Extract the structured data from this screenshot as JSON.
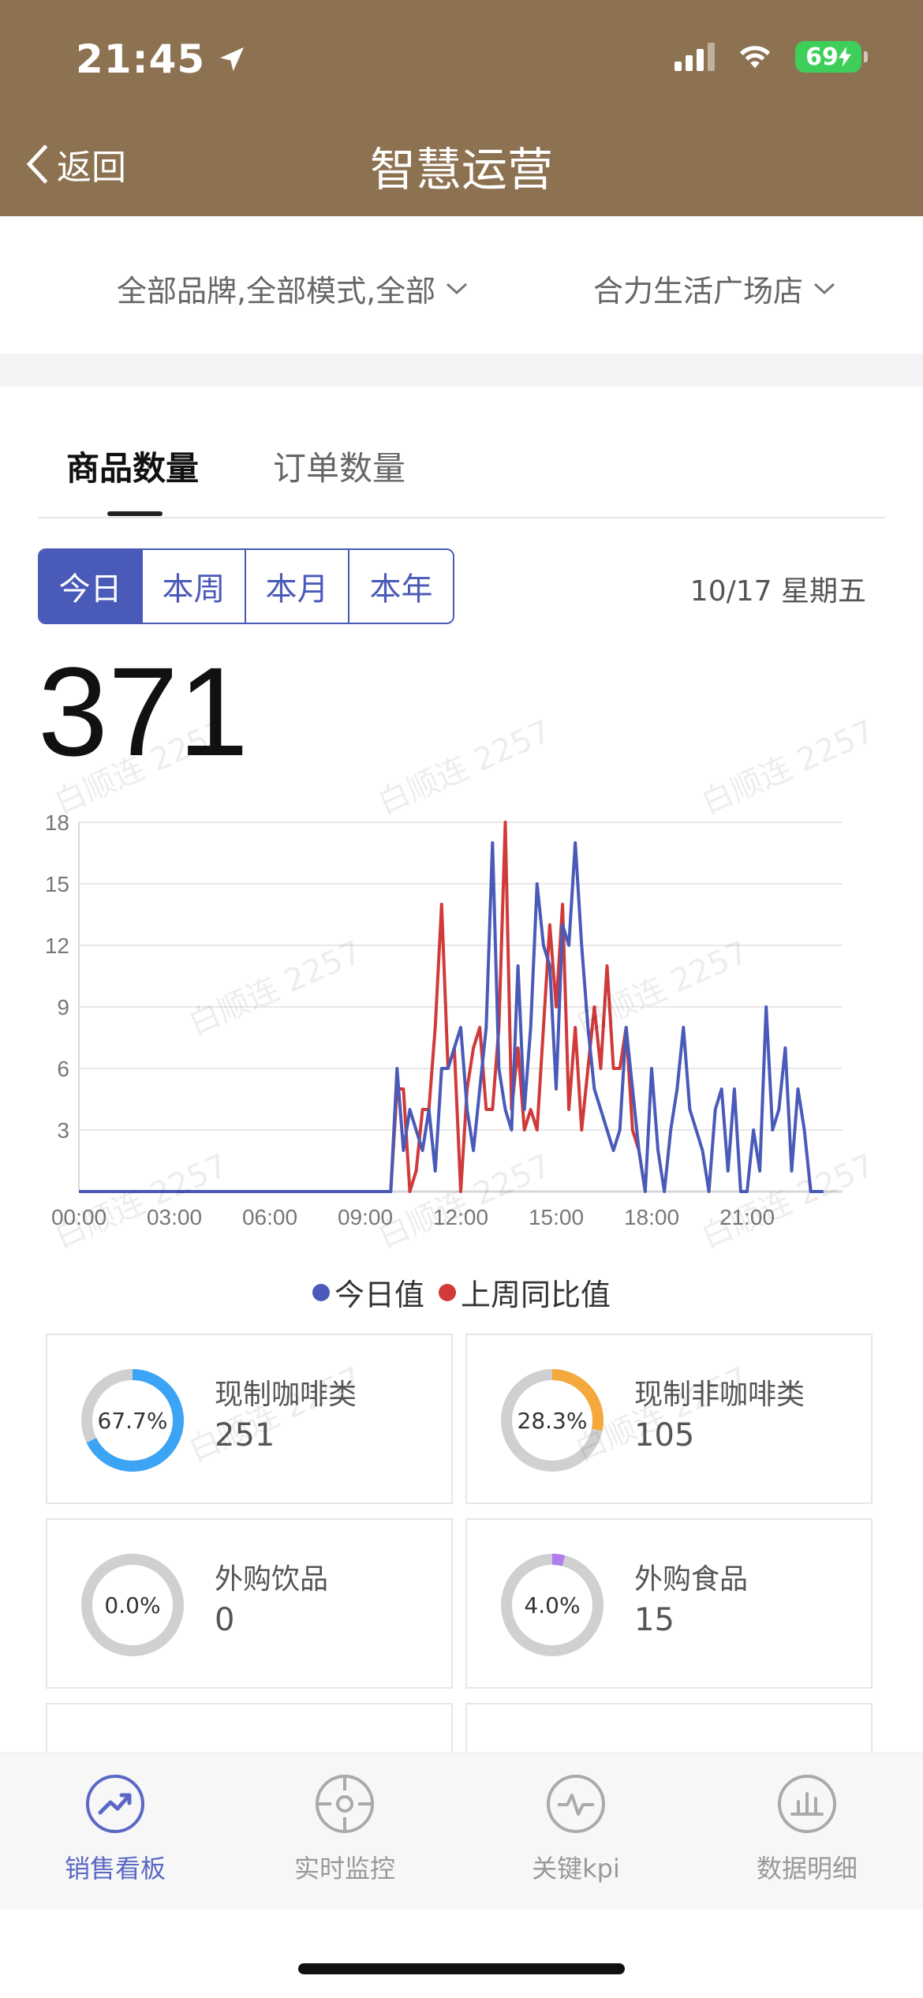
{
  "status": {
    "time": "21:45",
    "battery": "69"
  },
  "nav": {
    "back_label": "返回",
    "title": "智慧运营"
  },
  "filters": {
    "brand_filter": "全部品牌,全部模式,全部",
    "store_filter": "合力生活广场店"
  },
  "tabs": [
    {
      "label": "商品数量",
      "active": true
    },
    {
      "label": "订单数量",
      "active": false
    }
  ],
  "segments": [
    {
      "label": "今日",
      "active": true
    },
    {
      "label": "本周",
      "active": false
    },
    {
      "label": "本月",
      "active": false
    },
    {
      "label": "本年",
      "active": false
    }
  ],
  "date_label": "10/17 星期五",
  "total": "371",
  "watermark": "白顺连 2257",
  "colors": {
    "header": "#8c7251",
    "accent": "#4a5ab8",
    "today": "#4a5ab8",
    "last_week": "#d03a3a"
  },
  "chart_data": {
    "type": "line",
    "title": "",
    "xlabel": "",
    "ylabel": "",
    "x_ticks": [
      "00:00",
      "03:00",
      "06:00",
      "09:00",
      "12:00",
      "15:00",
      "18:00",
      "21:00"
    ],
    "y_ticks": [
      18,
      15,
      12,
      9,
      6,
      3
    ],
    "xlim": [
      0,
      24
    ],
    "ylim": [
      0,
      18
    ],
    "grid": true,
    "legend_position": "bottom",
    "series": [
      {
        "name": "今日值",
        "color": "#4a5ab8",
        "points": [
          [
            0,
            0
          ],
          [
            9.8,
            0
          ],
          [
            10.0,
            6
          ],
          [
            10.2,
            2
          ],
          [
            10.4,
            4
          ],
          [
            10.6,
            3
          ],
          [
            10.8,
            2
          ],
          [
            11.0,
            4
          ],
          [
            11.2,
            1
          ],
          [
            11.4,
            6
          ],
          [
            11.6,
            6
          ],
          [
            11.8,
            7
          ],
          [
            12.0,
            8
          ],
          [
            12.2,
            4
          ],
          [
            12.4,
            2
          ],
          [
            12.6,
            5
          ],
          [
            12.8,
            8
          ],
          [
            13.0,
            17
          ],
          [
            13.2,
            6
          ],
          [
            13.4,
            4
          ],
          [
            13.6,
            3
          ],
          [
            13.8,
            11
          ],
          [
            14.0,
            4
          ],
          [
            14.2,
            8
          ],
          [
            14.4,
            15
          ],
          [
            14.6,
            12
          ],
          [
            14.8,
            11
          ],
          [
            15.0,
            5
          ],
          [
            15.2,
            13
          ],
          [
            15.4,
            12
          ],
          [
            15.6,
            17
          ],
          [
            15.8,
            12
          ],
          [
            16.0,
            8
          ],
          [
            16.2,
            5
          ],
          [
            16.4,
            4
          ],
          [
            16.6,
            3
          ],
          [
            16.8,
            2
          ],
          [
            17.0,
            3
          ],
          [
            17.2,
            8
          ],
          [
            17.4,
            5
          ],
          [
            17.6,
            2
          ],
          [
            17.8,
            0
          ],
          [
            18.0,
            6
          ],
          [
            18.2,
            2
          ],
          [
            18.4,
            0
          ],
          [
            18.6,
            3
          ],
          [
            18.8,
            5
          ],
          [
            19.0,
            8
          ],
          [
            19.2,
            4
          ],
          [
            19.4,
            3
          ],
          [
            19.6,
            2
          ],
          [
            19.8,
            0
          ],
          [
            20.0,
            4
          ],
          [
            20.2,
            5
          ],
          [
            20.4,
            1
          ],
          [
            20.6,
            5
          ],
          [
            20.8,
            0
          ],
          [
            21.0,
            0
          ],
          [
            21.2,
            3
          ],
          [
            21.4,
            1
          ],
          [
            21.6,
            9
          ],
          [
            21.8,
            3
          ],
          [
            22.0,
            4
          ],
          [
            22.2,
            7
          ],
          [
            22.4,
            1
          ],
          [
            22.6,
            5
          ],
          [
            22.8,
            3
          ],
          [
            23.0,
            0
          ],
          [
            23.4,
            0
          ]
        ]
      },
      {
        "name": "上周同比值",
        "color": "#d03a3a",
        "points": [
          [
            0,
            0
          ],
          [
            9.8,
            0
          ],
          [
            10.0,
            5
          ],
          [
            10.2,
            5
          ],
          [
            10.4,
            0
          ],
          [
            10.6,
            1
          ],
          [
            10.8,
            4
          ],
          [
            11.0,
            4
          ],
          [
            11.2,
            8
          ],
          [
            11.4,
            14
          ],
          [
            11.6,
            6
          ],
          [
            11.8,
            7
          ],
          [
            12.0,
            0
          ],
          [
            12.2,
            5
          ],
          [
            12.4,
            7
          ],
          [
            12.6,
            8
          ],
          [
            12.8,
            4
          ],
          [
            13.0,
            4
          ],
          [
            13.2,
            8
          ],
          [
            13.4,
            18
          ],
          [
            13.6,
            4
          ],
          [
            13.8,
            7
          ],
          [
            14.0,
            3
          ],
          [
            14.2,
            4
          ],
          [
            14.4,
            3
          ],
          [
            14.6,
            8
          ],
          [
            14.8,
            13
          ],
          [
            15.0,
            9
          ],
          [
            15.2,
            14
          ],
          [
            15.4,
            4
          ],
          [
            15.6,
            8
          ],
          [
            15.8,
            3
          ],
          [
            16.0,
            6
          ],
          [
            16.2,
            9
          ],
          [
            16.4,
            6
          ],
          [
            16.6,
            11
          ],
          [
            16.8,
            6
          ],
          [
            17.0,
            6
          ],
          [
            17.2,
            8
          ],
          [
            17.4,
            3
          ],
          [
            17.6,
            2
          ],
          [
            17.8,
            0
          ]
        ]
      }
    ]
  },
  "legend": [
    {
      "label": "今日值",
      "color": "#4a5ab8"
    },
    {
      "label": "上周同比值",
      "color": "#d03a3a"
    }
  ],
  "categories": [
    {
      "name": "现制咖啡类",
      "value": "251",
      "percent_label": "67.7%",
      "fraction": 0.677,
      "color": "#3ba4f5"
    },
    {
      "name": "现制非咖啡类",
      "value": "105",
      "percent_label": "28.3%",
      "fraction": 0.283,
      "color": "#f5a83b"
    },
    {
      "name": "外购饮品",
      "value": "0",
      "percent_label": "0.0%",
      "fraction": 0.0,
      "color": "#9b59f0"
    },
    {
      "name": "外购食品",
      "value": "15",
      "percent_label": "4.0%",
      "fraction": 0.04,
      "color": "#b07cf0"
    }
  ],
  "tabbar": [
    {
      "label": "销售看板",
      "icon": "trend-up-icon",
      "active": true
    },
    {
      "label": "实时监控",
      "icon": "crosshair-icon",
      "active": false
    },
    {
      "label": "关键kpi",
      "icon": "pulse-icon",
      "active": false
    },
    {
      "label": "数据明细",
      "icon": "bar-chart-icon",
      "active": false
    }
  ]
}
